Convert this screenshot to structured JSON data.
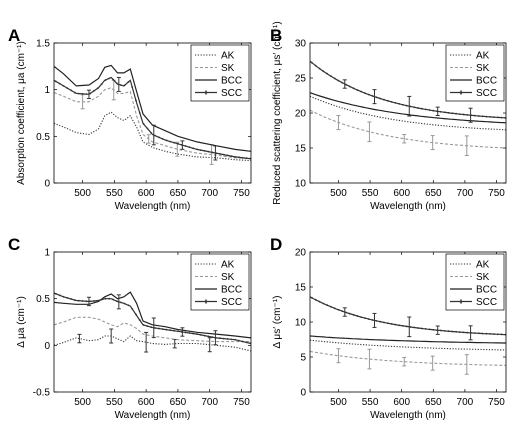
{
  "chart_data": [
    {
      "panel": "A",
      "type": "line",
      "xlabel": "Wavelength (nm)",
      "ylabel": "Absorption coefficient, μa (cm⁻¹)",
      "xlim": [
        455,
        765
      ],
      "ylim": [
        0,
        1.5
      ],
      "xticks": [
        500,
        550,
        600,
        650,
        700,
        750
      ],
      "yticks": [
        0,
        0.5,
        1,
        1.5
      ],
      "yticklabels": [
        "0",
        "0.5",
        "1",
        "1.5"
      ],
      "legend": "top-right",
      "series": [
        {
          "name": "AK",
          "style": "dotted",
          "color": "#333333",
          "errorbars": false,
          "x": [
            455,
            470,
            490,
            510,
            525,
            535,
            545,
            555,
            565,
            575,
            585,
            595,
            610,
            630,
            650,
            680,
            710,
            740,
            765
          ],
          "y": [
            0.64,
            0.6,
            0.54,
            0.52,
            0.58,
            0.72,
            0.76,
            0.7,
            0.67,
            0.72,
            0.6,
            0.44,
            0.38,
            0.34,
            0.31,
            0.28,
            0.27,
            0.25,
            0.24
          ]
        },
        {
          "name": "SK",
          "style": "dashed",
          "color": "#999999",
          "errorbars": true,
          "x": [
            455,
            470,
            490,
            510,
            525,
            535,
            545,
            555,
            565,
            575,
            585,
            595,
            610,
            630,
            650,
            680,
            710,
            740,
            765
          ],
          "y": [
            0.97,
            0.93,
            0.87,
            0.87,
            0.93,
            1.0,
            1.02,
            0.96,
            0.96,
            0.98,
            0.72,
            0.52,
            0.44,
            0.4,
            0.36,
            0.32,
            0.3,
            0.27,
            0.26
          ]
        },
        {
          "name": "BCC",
          "style": "solid",
          "color": "#222222",
          "errorbars": false,
          "x": [
            455,
            470,
            490,
            510,
            525,
            535,
            545,
            555,
            565,
            575,
            585,
            595,
            610,
            630,
            650,
            680,
            710,
            740,
            765
          ],
          "y": [
            1.25,
            1.17,
            1.04,
            1.05,
            1.12,
            1.24,
            1.26,
            1.18,
            1.18,
            1.22,
            0.98,
            0.74,
            0.62,
            0.56,
            0.5,
            0.44,
            0.4,
            0.36,
            0.34
          ]
        },
        {
          "name": "SCC",
          "style": "marker",
          "color": "#333333",
          "errorbars": true,
          "x": [
            455,
            470,
            490,
            510,
            525,
            535,
            545,
            555,
            565,
            575,
            585,
            595,
            610,
            630,
            650,
            680,
            710,
            740,
            765
          ],
          "y": [
            1.1,
            1.04,
            0.96,
            0.95,
            1.02,
            1.1,
            1.13,
            1.06,
            1.04,
            1.1,
            0.86,
            0.64,
            0.52,
            0.46,
            0.42,
            0.36,
            0.32,
            0.28,
            0.26
          ]
        }
      ]
    },
    {
      "panel": "B",
      "type": "line",
      "xlabel": "Wavelength (nm)",
      "ylabel": "Reduced scattering coefficient, μs′ (cm⁻¹)",
      "xlim": [
        455,
        765
      ],
      "ylim": [
        10,
        30
      ],
      "xticks": [
        500,
        550,
        600,
        650,
        700,
        750
      ],
      "yticks": [
        10,
        15,
        20,
        25,
        30
      ],
      "yticklabels": [
        "10",
        "15",
        "20",
        "25",
        "30"
      ],
      "legend": "top-right",
      "series": [
        {
          "name": "AK",
          "style": "dotted",
          "color": "#333333",
          "errorbars": false,
          "x": [
            455,
            765
          ],
          "y": [
            22.4,
            17.6
          ],
          "k": 1.05
        },
        {
          "name": "SK",
          "style": "dashed",
          "color": "#999999",
          "errorbars": true,
          "x": [
            455,
            765
          ],
          "y": [
            20.4,
            15.0
          ],
          "k": 1.1
        },
        {
          "name": "BCC",
          "style": "solid",
          "color": "#222222",
          "errorbars": false,
          "x": [
            455,
            765
          ],
          "y": [
            22.9,
            18.6
          ],
          "k": 0.9
        },
        {
          "name": "SCC",
          "style": "marker",
          "color": "#333333",
          "errorbars": true,
          "x": [
            455,
            765
          ],
          "y": [
            27.4,
            19.3
          ],
          "k": 1.2
        }
      ]
    },
    {
      "panel": "C",
      "type": "line",
      "xlabel": "Wavelength (nm)",
      "ylabel": "Δ μa (cm⁻¹)",
      "xlim": [
        455,
        765
      ],
      "ylim": [
        -0.5,
        1.0
      ],
      "xticks": [
        500,
        550,
        600,
        650,
        700,
        750
      ],
      "yticks": [
        -0.5,
        0,
        0.5,
        1
      ],
      "yticklabels": [
        "-0.5",
        "0",
        "0.5",
        "1"
      ],
      "legend": "top-right",
      "series": [
        {
          "name": "AK",
          "style": "dotted",
          "color": "#333333",
          "errorbars": true,
          "x": [
            455,
            470,
            490,
            510,
            525,
            535,
            545,
            555,
            565,
            575,
            585,
            595,
            610,
            630,
            650,
            680,
            710,
            740,
            765
          ],
          "y": [
            0.0,
            0.03,
            0.08,
            0.05,
            0.06,
            0.1,
            0.1,
            0.07,
            0.04,
            0.1,
            0.05,
            0.04,
            0.02,
            0.01,
            0.02,
            0.02,
            0.0,
            -0.02,
            -0.06
          ]
        },
        {
          "name": "SK",
          "style": "dashed",
          "color": "#999999",
          "errorbars": false,
          "x": [
            455,
            470,
            490,
            510,
            525,
            535,
            545,
            555,
            565,
            575,
            585,
            595,
            610,
            630,
            650,
            680,
            710,
            740,
            765
          ],
          "y": [
            0.22,
            0.25,
            0.3,
            0.3,
            0.28,
            0.25,
            0.22,
            0.2,
            0.24,
            0.22,
            0.18,
            0.12,
            0.1,
            0.08,
            0.06,
            0.05,
            0.04,
            0.04,
            0.04
          ]
        },
        {
          "name": "BCC",
          "style": "solid",
          "color": "#222222",
          "errorbars": false,
          "x": [
            455,
            470,
            490,
            510,
            525,
            535,
            545,
            555,
            565,
            575,
            585,
            595,
            610,
            630,
            650,
            680,
            710,
            740,
            765
          ],
          "y": [
            0.46,
            0.45,
            0.44,
            0.44,
            0.47,
            0.52,
            0.55,
            0.5,
            0.52,
            0.57,
            0.45,
            0.26,
            0.22,
            0.2,
            0.17,
            0.14,
            0.12,
            0.1,
            0.08
          ]
        },
        {
          "name": "SCC",
          "style": "marker",
          "color": "#333333",
          "errorbars": true,
          "x": [
            455,
            470,
            490,
            510,
            525,
            535,
            545,
            555,
            565,
            575,
            585,
            595,
            610,
            630,
            650,
            680,
            710,
            740,
            765
          ],
          "y": [
            0.56,
            0.52,
            0.48,
            0.47,
            0.48,
            0.5,
            0.5,
            0.47,
            0.45,
            0.42,
            0.32,
            0.22,
            0.19,
            0.17,
            0.15,
            0.12,
            0.08,
            0.06,
            0.02
          ]
        }
      ]
    },
    {
      "panel": "D",
      "type": "line",
      "xlabel": "Wavelength (nm)",
      "ylabel": "Δ μs′ (cm⁻¹)",
      "xlim": [
        455,
        765
      ],
      "ylim": [
        0,
        20
      ],
      "xticks": [
        500,
        550,
        600,
        650,
        700,
        750
      ],
      "yticks": [
        0,
        5,
        10,
        15,
        20
      ],
      "yticklabels": [
        "0",
        "5",
        "10",
        "15",
        "20"
      ],
      "legend": "top-right",
      "series": [
        {
          "name": "AK",
          "style": "dotted",
          "color": "#333333",
          "errorbars": false,
          "x": [
            455,
            765
          ],
          "y": [
            7.4,
            6.0
          ],
          "k": 0.8
        },
        {
          "name": "SK",
          "style": "dashed",
          "color": "#999999",
          "errorbars": true,
          "x": [
            455,
            765
          ],
          "y": [
            5.8,
            3.8
          ],
          "k": 1.0
        },
        {
          "name": "BCC",
          "style": "solid",
          "color": "#222222",
          "errorbars": false,
          "x": [
            455,
            765
          ],
          "y": [
            8.0,
            7.0
          ],
          "k": 0.8
        },
        {
          "name": "SCC",
          "style": "marker",
          "color": "#333333",
          "errorbars": true,
          "x": [
            455,
            765
          ],
          "y": [
            13.6,
            8.2
          ],
          "k": 1.2
        }
      ]
    }
  ]
}
